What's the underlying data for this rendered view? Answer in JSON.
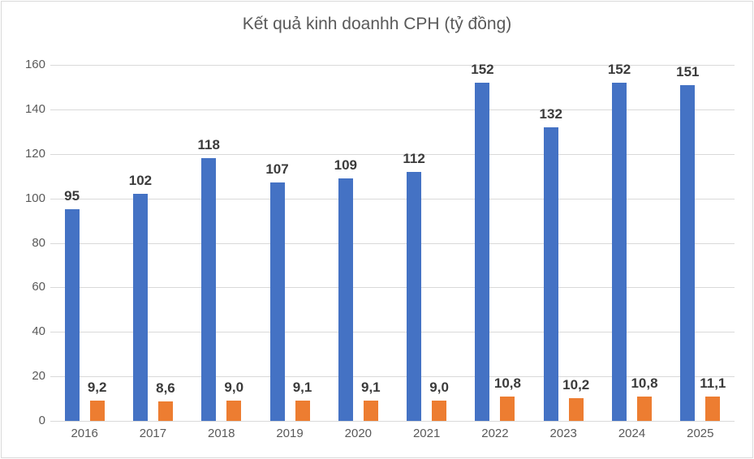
{
  "chart_data": {
    "type": "bar",
    "title": "Kết quả kinh doanhh CPH (tỷ đồng)",
    "categories": [
      "2016",
      "2017",
      "2018",
      "2019",
      "2020",
      "2021",
      "2022",
      "2023",
      "2024",
      "2025"
    ],
    "series": [
      {
        "name": "series-1",
        "color": "#4472C4",
        "values": [
          95,
          102,
          118,
          107,
          109,
          112,
          152,
          132,
          152,
          151
        ],
        "labels": [
          "95",
          "102",
          "118",
          "107",
          "109",
          "112",
          "152",
          "132",
          "152",
          "151"
        ]
      },
      {
        "name": "series-2",
        "color": "#ED7D31",
        "values": [
          9.2,
          8.6,
          9.0,
          9.1,
          9.1,
          9.0,
          10.8,
          10.2,
          10.8,
          11.1
        ],
        "labels": [
          "9,2",
          "8,6",
          "9,0",
          "9,1",
          "9,1",
          "9,0",
          "10,8",
          "10,2",
          "10,8",
          "11,1"
        ]
      }
    ],
    "ylim": [
      0,
      160
    ],
    "y_ticks": [
      0,
      20,
      40,
      60,
      80,
      100,
      120,
      140,
      160
    ],
    "grid": true,
    "legend": "none",
    "colors": {
      "grid": "#d9d9d9",
      "axis_text": "#595959",
      "label_text": "#3b3b3b",
      "title_text": "#595959",
      "frame_border": "#d9d9d9"
    }
  }
}
